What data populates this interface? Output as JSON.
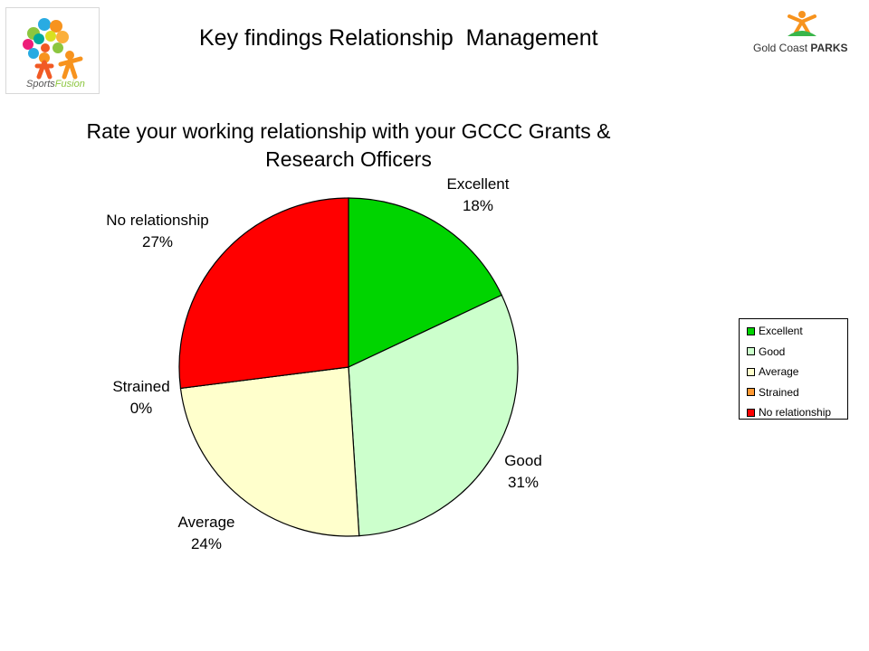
{
  "header": {
    "title": "Key findings Relationship  Management",
    "left_logo": {
      "text_main": "Sports",
      "text_accent": "Fusion"
    },
    "right_logo": {
      "text_main": "Gold Coast",
      "text_bold": "PARKS"
    }
  },
  "colors": {
    "excellent": "#00d400",
    "good": "#ccffcc",
    "average": "#ffffcc",
    "strained": "#ff9933",
    "no_relationship": "#ff0000"
  },
  "chart_data": {
    "type": "pie",
    "title": "Rate your working relationship with your GCCC Grants & Research Officers",
    "categories": [
      "Excellent",
      "Good",
      "Average",
      "Strained",
      "No relationship"
    ],
    "values": [
      18,
      31,
      24,
      0,
      27
    ],
    "value_labels": [
      "18%",
      "31%",
      "24%",
      "0%",
      "27%"
    ],
    "units": "%",
    "legend": {
      "placement": "right",
      "entries": [
        "Excellent",
        "Good",
        "Average",
        "Strained",
        "No relationship"
      ]
    }
  }
}
